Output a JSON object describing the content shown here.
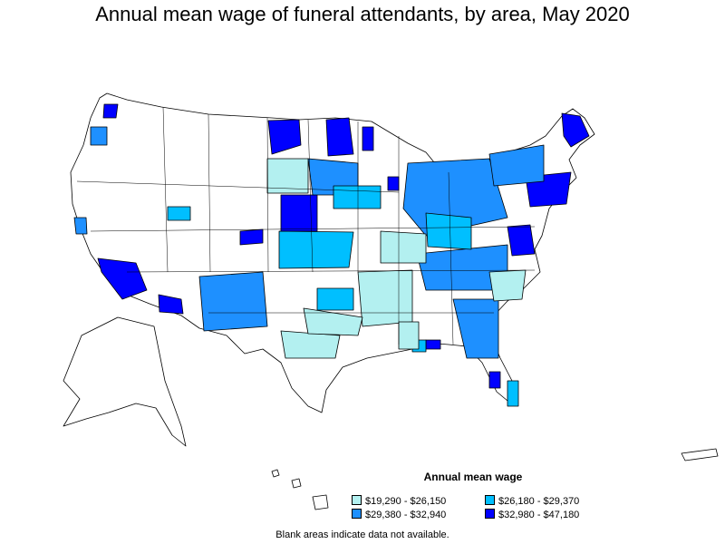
{
  "title": "Annual mean wage of funeral attendants, by area, May 2020",
  "legend": {
    "title": "Annual mean wage",
    "items": [
      {
        "label": "$19,290 - $26,150",
        "color": "#b3f0f0"
      },
      {
        "label": "$26,180 - $29,370",
        "color": "#00bfff"
      },
      {
        "label": "$29,380 - $32,940",
        "color": "#1e90ff"
      },
      {
        "label": "$32,980 - $47,180",
        "color": "#0000ff"
      }
    ]
  },
  "note": "Blank areas indicate data not available."
}
